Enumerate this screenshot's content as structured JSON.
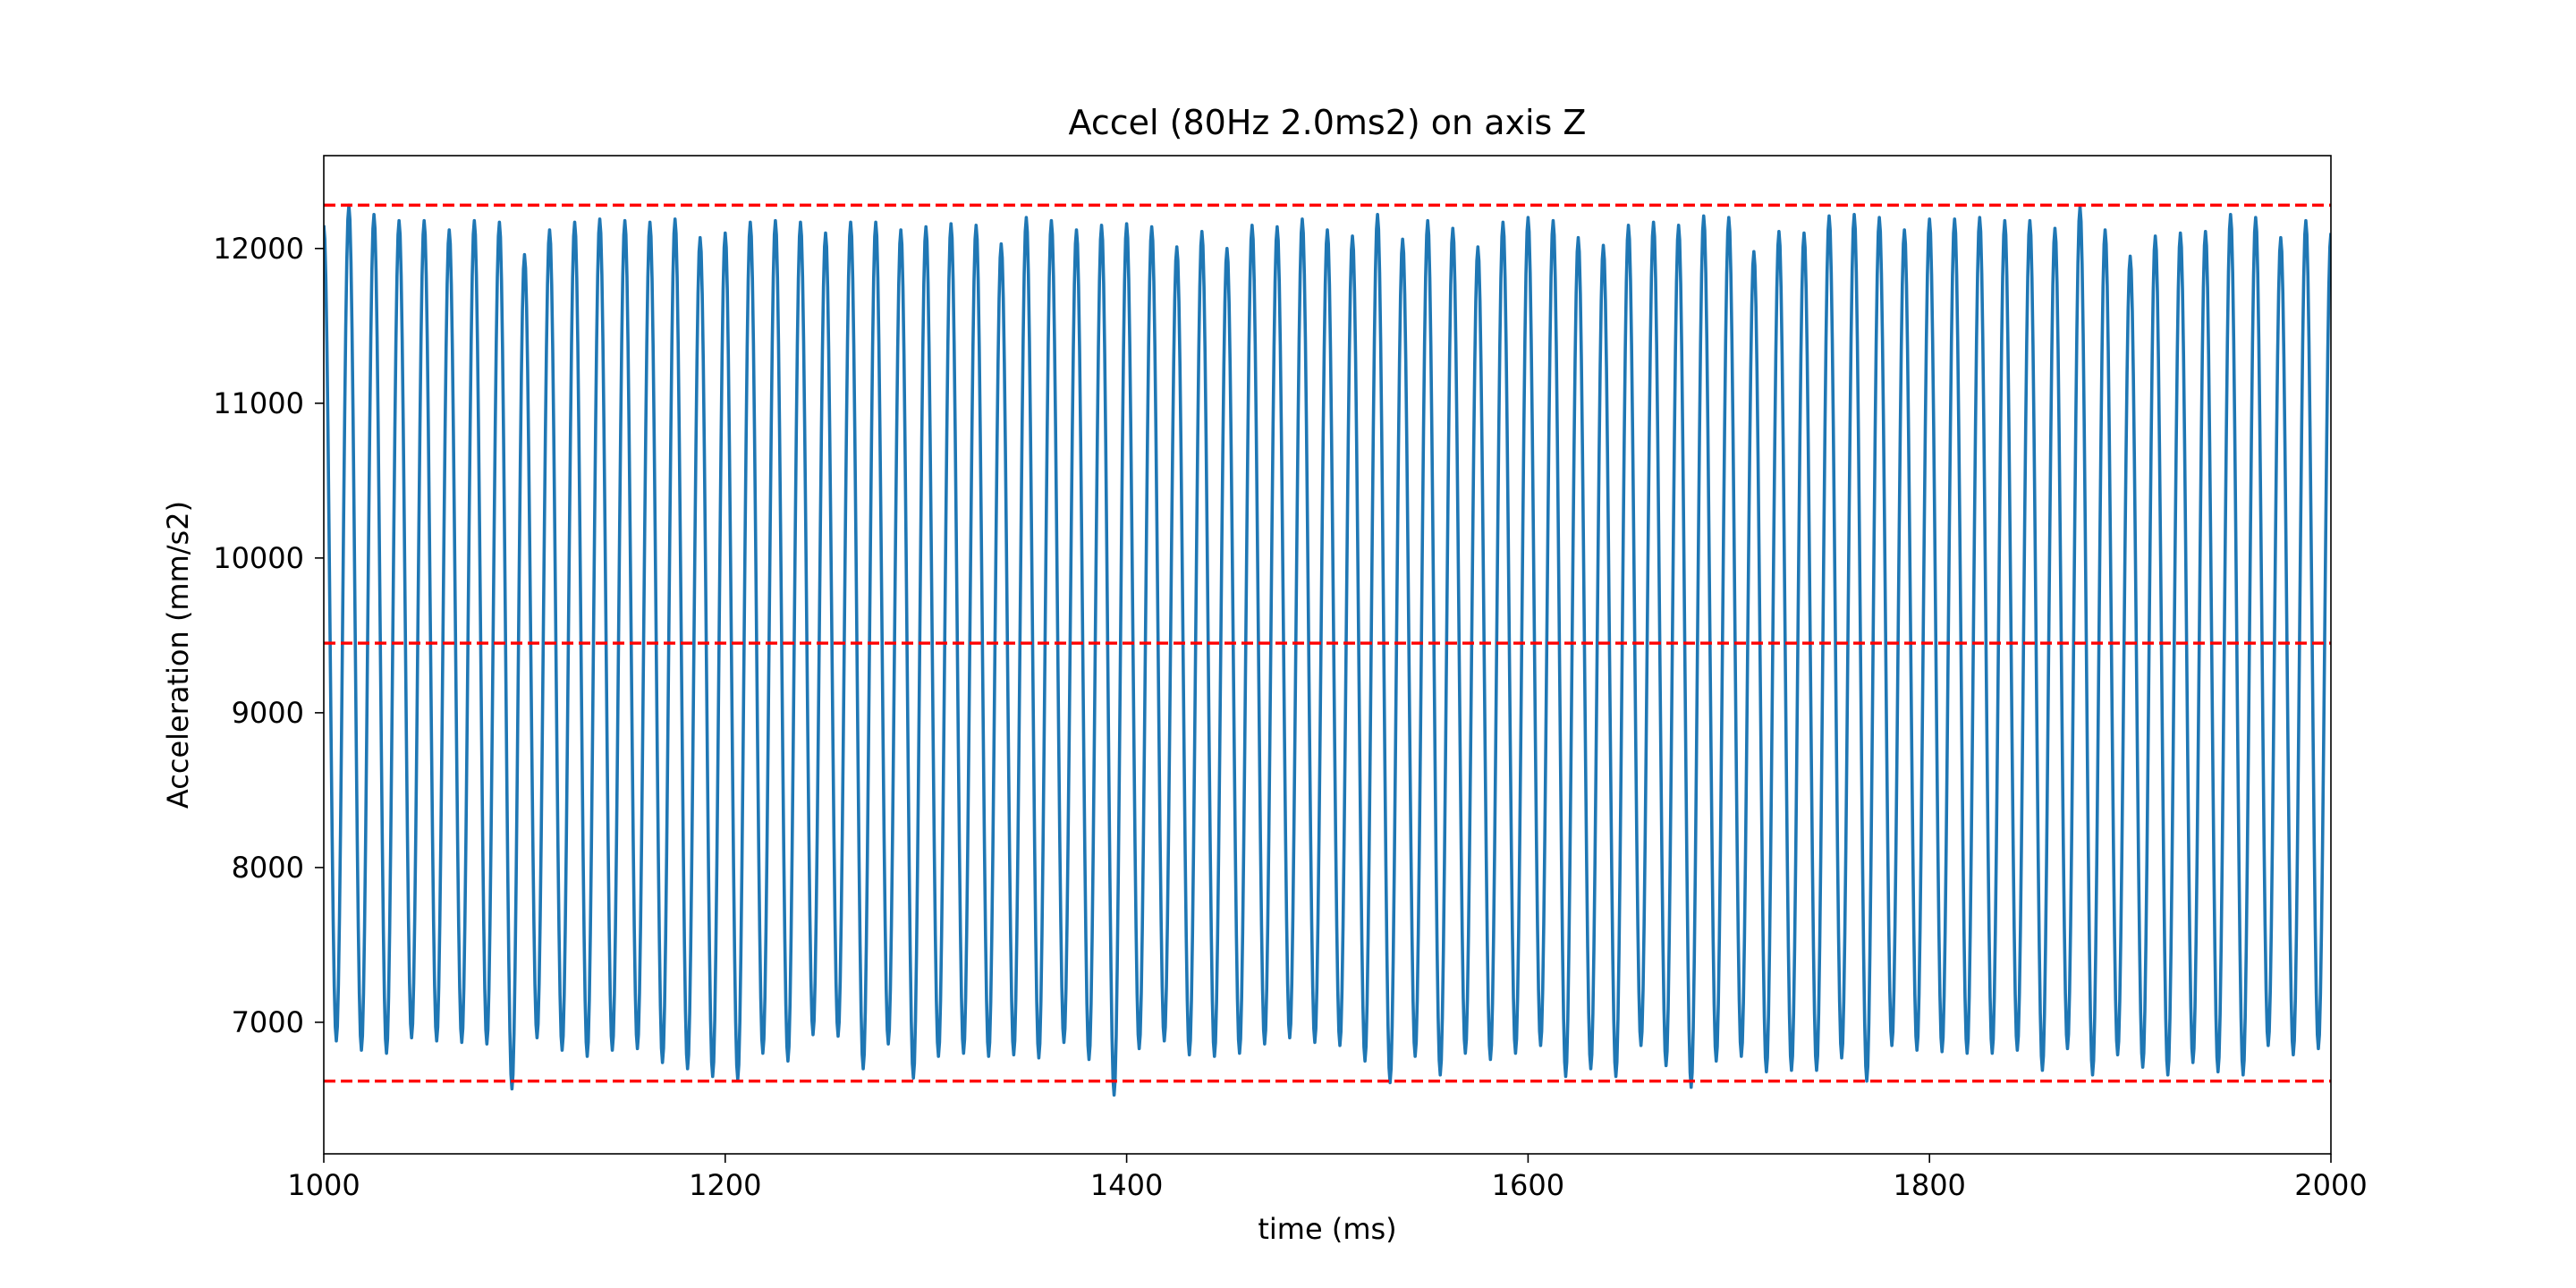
{
  "chart_data": {
    "type": "line",
    "title": "Accel (80Hz 2.0ms2) on axis Z",
    "xlabel": "time (ms)",
    "ylabel": "Acceleration (mm/s2)",
    "xlim": [
      1000,
      2000
    ],
    "ylim": [
      6150,
      12600
    ],
    "x_ticks": [
      1000,
      1200,
      1400,
      1600,
      1800,
      2000
    ],
    "y_ticks": [
      7000,
      8000,
      9000,
      10000,
      11000,
      12000
    ],
    "grid": false,
    "series": [
      {
        "color": "#1f77b4",
        "line_style": "solid",
        "signal": {
          "frequency_hz": 80,
          "x_start": 1000,
          "x_end": 2000,
          "peaks": [
            12150,
            12280,
            12220,
            12180,
            12180,
            12120,
            12180,
            12170,
            11960,
            12120,
            12170,
            12190,
            12180,
            12170,
            12190,
            12070,
            12100,
            12170,
            12180,
            12170,
            12100,
            12170,
            12170,
            12120,
            12140,
            12160,
            12150,
            12030,
            12200,
            12180,
            12120,
            12150,
            12160,
            12140,
            12010,
            12110,
            12000,
            12150,
            12140,
            12190,
            12120,
            12080,
            12220,
            12060,
            12180,
            12130,
            12010,
            12170,
            12200,
            12180,
            12070,
            12020,
            12150,
            12170,
            12150,
            12210,
            12200,
            11980,
            12110,
            12100,
            12210,
            12220,
            12200,
            12120,
            12190,
            12190,
            12200,
            12180,
            12180,
            12130,
            12270,
            12120,
            11950,
            12080,
            12100,
            12110,
            12220,
            12200,
            12070,
            12180,
            12100,
            12160,
            12220,
            12200,
            12170,
            12200,
            12110,
            12160,
            12010,
            12180
          ],
          "troughs": [
            6880,
            6820,
            6800,
            6900,
            6880,
            6870,
            6860,
            6570,
            6900,
            6820,
            6780,
            6820,
            6830,
            6740,
            6700,
            6650,
            6630,
            6800,
            6750,
            6920,
            6910,
            6700,
            6860,
            6640,
            6780,
            6800,
            6780,
            6790,
            6770,
            6870,
            6760,
            6530,
            6830,
            6880,
            6790,
            6780,
            6800,
            6860,
            6900,
            6870,
            6850,
            6750,
            6610,
            6780,
            6660,
            6800,
            6760,
            6800,
            6850,
            6650,
            6700,
            6650,
            6850,
            6720,
            6580,
            6750,
            6780,
            6680,
            6690,
            6690,
            6770,
            6620,
            6850,
            6820,
            6810,
            6800,
            6800,
            6820,
            6690,
            6830,
            6660,
            6790,
            6710,
            6660,
            6740,
            6680,
            6660,
            6850,
            6790,
            6830,
            6640,
            6680,
            6620,
            6850,
            6770,
            6820,
            6740,
            6700,
            6640,
            6760
          ]
        }
      }
    ],
    "reference_lines": [
      {
        "y": 12280,
        "color": "#ff0000",
        "line_style": "dashed"
      },
      {
        "y": 9450,
        "color": "#ff0000",
        "line_style": "dashed"
      },
      {
        "y": 6620,
        "color": "#ff0000",
        "line_style": "dashed"
      }
    ]
  }
}
